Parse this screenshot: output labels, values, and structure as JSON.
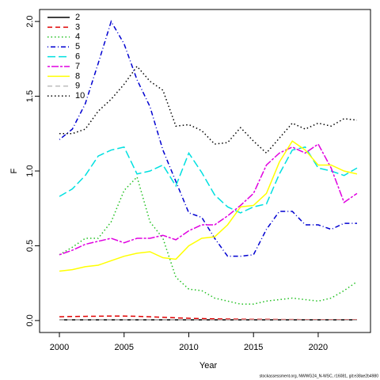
{
  "chart_data": {
    "type": "line",
    "xlabel": "Year",
    "ylabel": "F",
    "footer": "stockassessment.org, NWWG24_N-WSC, r16081, git:e38ae2b4980",
    "x": [
      2000,
      2001,
      2002,
      2003,
      2004,
      2005,
      2006,
      2007,
      2008,
      2009,
      2010,
      2011,
      2012,
      2013,
      2014,
      2015,
      2016,
      2017,
      2018,
      2019,
      2020,
      2021,
      2022,
      2023
    ],
    "xlim": [
      1999.08,
      2023.92
    ],
    "xticks": [
      2000,
      2005,
      2010,
      2015,
      2020
    ],
    "ylim": [
      -0.08,
      2.08
    ],
    "yticks": [
      {
        "value": 0,
        "label": "0.0"
      },
      0.5,
      {
        "value": 1,
        "label": "1.0"
      },
      1.5,
      {
        "value": 2,
        "label": "2.0"
      }
    ],
    "legend": "top-left",
    "series": [
      {
        "name": "2",
        "color": "#000000",
        "values": [
          0.005,
          0.005,
          0.005,
          0.005,
          0.005,
          0.005,
          0.005,
          0.005,
          0.005,
          0.005,
          0.005,
          0.005,
          0.005,
          0.005,
          0.005,
          0.005,
          0.005,
          0.005,
          0.005,
          0.005,
          0.005,
          0.005,
          0.005,
          0.005
        ]
      },
      {
        "name": "3",
        "color": "#df0000",
        "values": [
          0.025,
          0.027,
          0.028,
          0.029,
          0.03,
          0.03,
          0.028,
          0.025,
          0.022,
          0.018,
          0.015,
          0.013,
          0.011,
          0.01,
          0.009,
          0.008,
          0.008,
          0.007,
          0.007,
          0.006,
          0.006,
          0.006,
          0.006,
          0.006
        ]
      },
      {
        "name": "4",
        "color": "#22c022",
        "values": [
          0.44,
          0.49,
          0.55,
          0.55,
          0.66,
          0.87,
          0.96,
          0.66,
          0.55,
          0.29,
          0.21,
          0.2,
          0.15,
          0.13,
          0.11,
          0.11,
          0.13,
          0.14,
          0.15,
          0.14,
          0.13,
          0.15,
          0.2,
          0.26
        ]
      },
      {
        "name": "5",
        "color": "#0000d0",
        "values": [
          1.21,
          1.28,
          1.45,
          1.72,
          2.0,
          1.85,
          1.61,
          1.43,
          1.14,
          0.93,
          0.72,
          0.69,
          0.55,
          0.43,
          0.43,
          0.44,
          0.61,
          0.73,
          0.73,
          0.64,
          0.64,
          0.61,
          0.65,
          0.65
        ]
      },
      {
        "name": "6",
        "color": "#00e0e0",
        "values": [
          0.83,
          0.88,
          0.97,
          1.1,
          1.14,
          1.16,
          0.98,
          1.0,
          1.04,
          0.9,
          1.12,
          0.99,
          0.84,
          0.76,
          0.72,
          0.76,
          0.78,
          0.98,
          1.14,
          1.16,
          1.02,
          1.0,
          0.97,
          1.02
        ]
      },
      {
        "name": "7",
        "color": "#e000e0",
        "values": [
          0.44,
          0.47,
          0.51,
          0.53,
          0.55,
          0.52,
          0.55,
          0.55,
          0.57,
          0.54,
          0.6,
          0.64,
          0.64,
          0.7,
          0.77,
          0.85,
          1.04,
          1.12,
          1.16,
          1.12,
          1.18,
          1.02,
          0.79,
          0.85
        ]
      },
      {
        "name": "8",
        "color": "#ffff00",
        "values": [
          0.33,
          0.34,
          0.36,
          0.37,
          0.4,
          0.43,
          0.45,
          0.46,
          0.42,
          0.41,
          0.5,
          0.55,
          0.56,
          0.64,
          0.76,
          0.77,
          0.85,
          1.06,
          1.2,
          1.14,
          1.04,
          1.04,
          1.0,
          0.98
        ]
      },
      {
        "name": "9",
        "color": "#bebebe",
        "values": [
          0.004,
          0.004,
          0.004,
          0.004,
          0.004,
          0.004,
          0.004,
          0.004,
          0.004,
          0.004,
          0.004,
          0.004,
          0.004,
          0.004,
          0.004,
          0.004,
          0.004,
          0.004,
          0.004,
          0.004,
          0.004,
          0.004,
          0.004,
          0.004
        ]
      },
      {
        "name": "10",
        "color": "#000000",
        "values": [
          1.25,
          1.25,
          1.28,
          1.4,
          1.48,
          1.58,
          1.7,
          1.6,
          1.54,
          1.3,
          1.31,
          1.27,
          1.18,
          1.19,
          1.29,
          1.2,
          1.12,
          1.22,
          1.32,
          1.28,
          1.32,
          1.3,
          1.35,
          1.34
        ]
      }
    ]
  }
}
